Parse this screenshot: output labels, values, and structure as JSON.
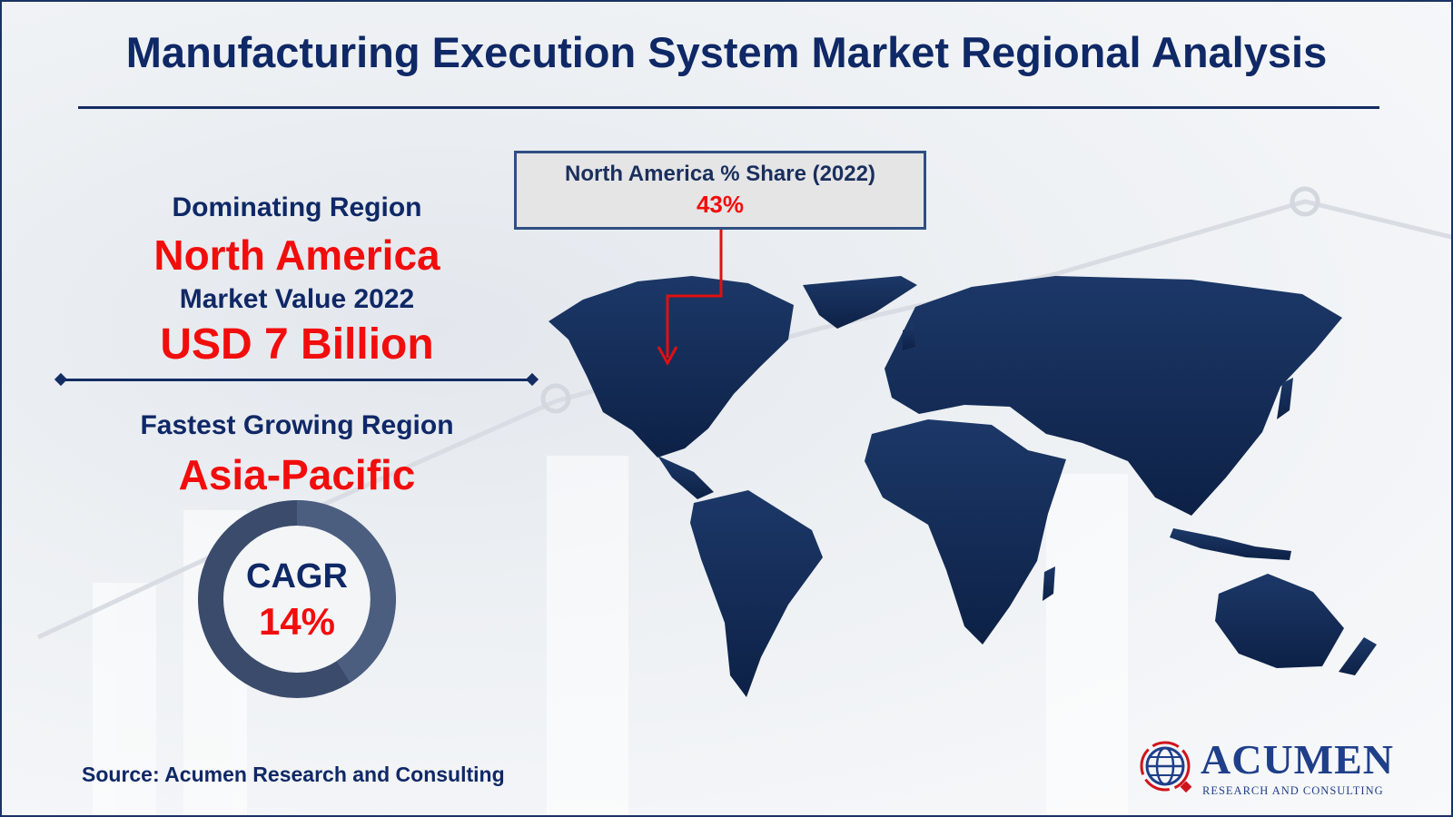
{
  "title": "Manufacturing Execution System Market Regional Analysis",
  "left_panel": {
    "dominating_label": "Dominating Region",
    "dominating_region": "North America",
    "market_value_label": "Market Value 2022",
    "market_value": "USD 7 Billion",
    "fastest_label": "Fastest Growing Region",
    "fastest_region": "Asia-Pacific",
    "cagr_label": "CAGR",
    "cagr_value": "14%"
  },
  "callout": {
    "heading": "North America % Share (2022)",
    "value": "43%"
  },
  "source": "Source: Acumen Research and Consulting",
  "logo": {
    "name": "ACUMEN",
    "tagline": "RESEARCH AND CONSULTING"
  },
  "colors": {
    "navy": "#0f2866",
    "red": "#f20d0d",
    "map": "#13294f",
    "donut": "#3e5072"
  }
}
